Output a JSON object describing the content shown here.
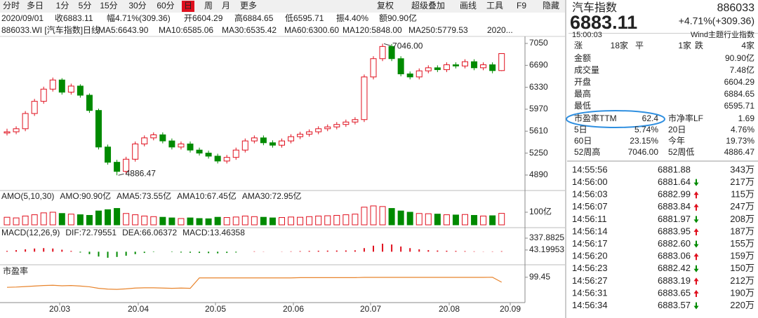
{
  "toolbar": {
    "periods": [
      "分时",
      "多日",
      "1分",
      "5分",
      "15分",
      "30分",
      "60分",
      "日",
      "周",
      "月",
      "更多"
    ],
    "active": 7,
    "tools": [
      "复权",
      "超级叠加",
      "画线",
      "工具",
      "F9",
      "隐藏"
    ]
  },
  "info_bar": [
    "2020/09/01",
    "收6883.11",
    "幅4.71%(309.36)",
    "开6604.29",
    "高6884.65",
    "低6595.71",
    "振4.40%",
    "额90.90亿"
  ],
  "ma_legend": [
    {
      "text": "886033.WI [汽车指数]",
      "color": "#222222"
    },
    {
      "text": "日线",
      "color": "#e0101e"
    },
    {
      "text": "MA5:6643.90",
      "color": "#e0101e"
    },
    {
      "text": "MA10:6585.06",
      "color": "#2a5cc8"
    },
    {
      "text": "MA30:6535.42",
      "color": "#1a2fb0"
    },
    {
      "text": "MA60:6300.60",
      "color": "#1a9a9a"
    },
    {
      "text": "MA120:5848.00",
      "color": "#2aa02a"
    },
    {
      "text": "MA250:5779.53",
      "color": "#b020b0"
    },
    {
      "text": "2020...",
      "color": "#222222"
    }
  ],
  "chart_data": {
    "type": "candlestick",
    "open": [
      5580,
      5600,
      5650,
      5900,
      6100,
      6300,
      6450,
      6250,
      6350,
      6200,
      5950,
      5350,
      5100,
      4950,
      5150,
      5400,
      5500,
      5550,
      5450,
      5350,
      5400,
      5300,
      5250,
      5200,
      5120,
      5180,
      5300,
      5450,
      5500,
      5420,
      5380,
      5450,
      5520,
      5560,
      5600,
      5650,
      5680,
      5720,
      5760,
      5800,
      6500,
      6800,
      7000,
      6800,
      6550,
      6500,
      6600,
      6650,
      6620,
      6700,
      6680,
      6750,
      6650,
      6700,
      6604.29
    ],
    "close": [
      5600,
      5650,
      5900,
      6100,
      6300,
      6450,
      6250,
      6350,
      6200,
      5950,
      5350,
      5100,
      4950,
      5150,
      5400,
      5500,
      5550,
      5450,
      5350,
      5400,
      5300,
      5250,
      5200,
      5120,
      5180,
      5300,
      5450,
      5500,
      5420,
      5380,
      5450,
      5520,
      5560,
      5600,
      5650,
      5680,
      5720,
      5760,
      5800,
      6500,
      6800,
      7000,
      6800,
      6550,
      6500,
      6600,
      6650,
      6620,
      6700,
      6680,
      6750,
      6650,
      6700,
      6604,
      6883.11
    ],
    "high": [
      5650,
      5690,
      5940,
      6140,
      6340,
      6490,
      6480,
      6390,
      6380,
      6230,
      5980,
      5390,
      5140,
      5190,
      5440,
      5540,
      5590,
      5590,
      5490,
      5440,
      5440,
      5340,
      5290,
      5240,
      5220,
      5340,
      5490,
      5540,
      5540,
      5460,
      5490,
      5560,
      5600,
      5640,
      5690,
      5720,
      5760,
      5800,
      5840,
      6540,
      6840,
      7046,
      7040,
      6840,
      6590,
      6640,
      6690,
      6690,
      6740,
      6740,
      6790,
      6790,
      6740,
      6740,
      6884.65
    ],
    "low": [
      5540,
      5560,
      5610,
      5860,
      6060,
      6260,
      6210,
      6210,
      6160,
      5910,
      5310,
      5060,
      4886.47,
      4910,
      5110,
      5360,
      5460,
      5410,
      5310,
      5310,
      5260,
      5210,
      5160,
      5080,
      5080,
      5140,
      5260,
      5410,
      5380,
      5340,
      5340,
      5410,
      5480,
      5520,
      5560,
      5610,
      5640,
      5680,
      5720,
      5760,
      6460,
      6760,
      6760,
      6510,
      6460,
      6460,
      6560,
      6580,
      6580,
      6640,
      6640,
      6610,
      6610,
      6560,
      6595.71
    ],
    "up_color": "#e0101e",
    "down_color": "#008a00",
    "ylim": [
      4682,
      7165
    ],
    "yticks": [
      7050,
      6690,
      6330,
      5970,
      5610,
      5250,
      4890
    ],
    "max_label": "7046.00",
    "min_label": "4886.47",
    "xlabels": [
      "20.03",
      "20.04",
      "20.05",
      "20.06",
      "20.07",
      "20.08",
      "20.09"
    ]
  },
  "amo_panel": {
    "labels": [
      {
        "text": "AMO(5,10,30)",
        "color": "#222222"
      },
      {
        "text": "AMO:90.90亿",
        "color": "#e0101e"
      },
      {
        "text": "AMA5:73.55亿",
        "color": "#e0101e"
      },
      {
        "text": "AMA10:67.45亿",
        "color": "#2aa02a"
      },
      {
        "text": "AMA30:72.95亿",
        "color": "#222222"
      }
    ],
    "values": [
      60,
      55,
      70,
      80,
      95,
      100,
      90,
      85,
      80,
      75,
      110,
      120,
      130,
      90,
      80,
      70,
      65,
      60,
      55,
      50,
      55,
      50,
      48,
      60,
      58,
      62,
      70,
      65,
      60,
      55,
      58,
      62,
      60,
      65,
      70,
      72,
      75,
      80,
      85,
      140,
      150,
      145,
      130,
      110,
      100,
      90,
      88,
      85,
      80,
      78,
      82,
      75,
      70,
      72,
      90.9
    ],
    "ylim": [
      0,
      172
    ],
    "yticks": [
      {
        "value": 100,
        "label": "100亿"
      }
    ]
  },
  "macd_panel": {
    "labels": [
      {
        "text": "MACD(12,26,9)",
        "color": "#222222"
      },
      {
        "text": "DIF:72.79551",
        "color": "#e0101e"
      },
      {
        "text": "DEA:66.06372",
        "color": "#2aa02a"
      },
      {
        "text": "MACD:13.46358",
        "color": "#222222"
      }
    ],
    "values": [
      20,
      40,
      60,
      80,
      90,
      80,
      50,
      20,
      -20,
      -60,
      -120,
      -150,
      -130,
      -100,
      -60,
      -30,
      -10,
      0,
      -10,
      -20,
      -25,
      -30,
      -35,
      -40,
      -30,
      -20,
      0,
      10,
      5,
      0,
      5,
      10,
      15,
      20,
      25,
      28,
      30,
      32,
      35,
      90,
      150,
      200,
      180,
      130,
      90,
      60,
      40,
      30,
      25,
      20,
      15,
      10,
      5,
      8,
      13.46358
    ],
    "ylim": [
      -290,
      337.8825
    ],
    "yticks": [
      337.8825,
      43.19953
    ]
  },
  "pe_panel": {
    "label": "市盈率",
    "values": [
      60,
      61,
      63,
      65,
      67,
      68,
      66,
      67,
      65,
      62,
      56,
      53,
      52,
      54,
      57,
      58,
      58,
      57,
      56,
      57,
      56,
      97,
      97,
      97,
      97,
      97,
      97,
      97,
      97,
      97,
      97,
      97,
      98,
      98,
      98,
      98,
      98,
      98,
      98,
      99,
      99,
      99,
      99,
      99,
      99,
      99,
      99,
      99,
      99,
      99,
      99,
      99,
      99,
      99.45,
      80
    ],
    "color": "#e8842c",
    "ylim": [
      0,
      110
    ],
    "yticks": [
      99.45
    ]
  },
  "quote": {
    "name": "汽车指数",
    "code": "886033",
    "price": "6883.11",
    "change": "+4.71%(+309.36)",
    "time": "15:00:03",
    "index_type": "Wind主题行业指数",
    "breadth": [
      {
        "k": "涨",
        "v": "18家"
      },
      {
        "k": "平",
        "v": "1家"
      },
      {
        "k": "跌",
        "v": "4家"
      }
    ],
    "stats": [
      {
        "k": "金额",
        "v": "90.90亿",
        "red": false
      },
      {
        "k": "成交量",
        "v": "7.48亿",
        "red": false
      },
      {
        "k": "开盘",
        "v": "6604.29",
        "red": true
      },
      {
        "k": "最高",
        "v": "6884.65",
        "red": true
      },
      {
        "k": "最低",
        "v": "6595.71",
        "red": true
      }
    ],
    "pairs": [
      [
        "市盈率TTM",
        "62.4",
        "市净率LF",
        "1.69"
      ],
      [
        "5日",
        "5.74%",
        "20日",
        "4.76%"
      ],
      [
        "60日",
        "23.15%",
        "今年",
        "19.73%"
      ],
      [
        "52周高",
        "7046.00",
        "52周低",
        "4886.47"
      ]
    ],
    "trades": [
      {
        "time": "14:55:56",
        "price": "6881.88",
        "dir": null,
        "volume": "343万"
      },
      {
        "time": "14:56:00",
        "price": "6881.64",
        "dir": "down",
        "volume": "217万"
      },
      {
        "time": "14:56:03",
        "price": "6882.99",
        "dir": "up",
        "volume": "115万"
      },
      {
        "time": "14:56:07",
        "price": "6883.84",
        "dir": "up",
        "volume": "247万"
      },
      {
        "time": "14:56:11",
        "price": "6881.97",
        "dir": "down",
        "volume": "208万"
      },
      {
        "time": "14:56:14",
        "price": "6883.95",
        "dir": "up",
        "volume": "187万"
      },
      {
        "time": "14:56:17",
        "price": "6882.60",
        "dir": "down",
        "volume": "155万"
      },
      {
        "time": "14:56:20",
        "price": "6883.06",
        "dir": "up",
        "volume": "159万"
      },
      {
        "time": "14:56:23",
        "price": "6882.42",
        "dir": "down",
        "volume": "150万"
      },
      {
        "time": "14:56:27",
        "price": "6883.19",
        "dir": "up",
        "volume": "212万"
      },
      {
        "time": "14:56:31",
        "price": "6883.65",
        "dir": "up",
        "volume": "190万"
      },
      {
        "time": "14:56:34",
        "price": "6883.57",
        "dir": "down",
        "volume": "220万"
      }
    ]
  }
}
